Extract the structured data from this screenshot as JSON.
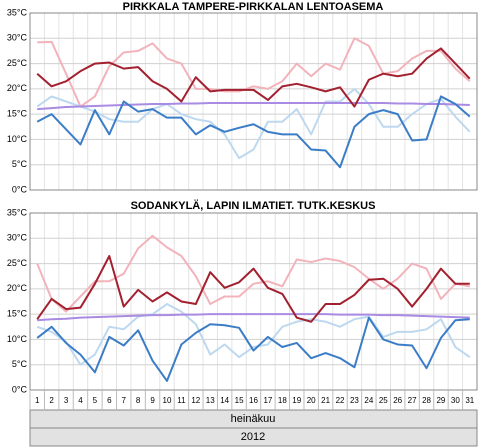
{
  "x_axis": {
    "categories": [
      "1",
      "2",
      "3",
      "4",
      "5",
      "6",
      "7",
      "8",
      "9",
      "10",
      "11",
      "12",
      "13",
      "14",
      "15",
      "16",
      "17",
      "18",
      "19",
      "20",
      "21",
      "22",
      "23",
      "24",
      "25",
      "26",
      "27",
      "28",
      "29",
      "30",
      "31"
    ],
    "month": "heinäkuu",
    "year": "2012"
  },
  "chart_data": [
    {
      "type": "line",
      "title": "PIRKKALA TAMPERE-PIRKKALAN LENTOASEMA",
      "grid": true,
      "ylim": [
        0,
        35
      ],
      "yticks": [
        {
          "value": 0,
          "label": "0°C"
        },
        {
          "value": 5,
          "label": "5°C"
        },
        {
          "value": 10,
          "label": "10°C"
        },
        {
          "value": 15,
          "label": "15°C"
        },
        {
          "value": 20,
          "label": "20°C"
        },
        {
          "value": 25,
          "label": "25°C"
        },
        {
          "value": 30,
          "label": "30°C"
        },
        {
          "value": 35,
          "label": "35°C"
        }
      ],
      "series": [
        {
          "color": "#f2b3bb",
          "values": [
            29.2,
            29.3,
            23,
            16.5,
            18.5,
            24.5,
            27.2,
            27.5,
            29,
            26,
            25,
            20,
            20,
            19.5,
            19.5,
            20.5,
            20,
            21.5,
            25,
            22.5,
            25,
            23.8,
            30,
            28.5,
            23,
            23.5,
            26,
            27.5,
            27.5,
            24,
            21.5
          ]
        },
        {
          "color": "#bdd8ef",
          "values": [
            16.5,
            18.5,
            17.5,
            16.5,
            15.5,
            14,
            13.5,
            13.5,
            16,
            17,
            15,
            14,
            13.5,
            11,
            6.3,
            8,
            13.5,
            13.5,
            16,
            11,
            17.5,
            17.5,
            20,
            17,
            12.5,
            12.5,
            15,
            17,
            18,
            14.5,
            11.5
          ]
        },
        {
          "color": "#a98be3",
          "values": [
            16,
            16.2,
            16.4,
            16.5,
            16.6,
            16.7,
            16.8,
            16.9,
            17,
            17,
            17.1,
            17.1,
            17.2,
            17.2,
            17.2,
            17.2,
            17.2,
            17.2,
            17.2,
            17.2,
            17.2,
            17.2,
            17.2,
            17.2,
            17.2,
            17.1,
            17.1,
            17,
            17,
            16.9,
            16.8
          ]
        },
        {
          "color": "#a3202f",
          "values": [
            23,
            20.5,
            21.5,
            23.5,
            25,
            25.2,
            24,
            24.3,
            21.5,
            20,
            17.5,
            22.3,
            19.5,
            19.8,
            19.8,
            19.8,
            17.8,
            20.5,
            21,
            20.3,
            19.5,
            20.3,
            16.5,
            21.8,
            23,
            22.5,
            23,
            26,
            28,
            25,
            22
          ]
        },
        {
          "color": "#3b7dc6",
          "values": [
            13.5,
            15,
            12,
            9,
            15.8,
            11,
            17.5,
            15.5,
            16,
            14.3,
            14.3,
            11,
            12.8,
            11.5,
            12.3,
            13,
            11.5,
            11,
            11,
            8,
            7.8,
            4.5,
            12.5,
            15,
            15.8,
            15,
            9.8,
            10,
            18.5,
            17,
            14.5
          ]
        }
      ]
    },
    {
      "type": "line",
      "title": "SODANKYLÄ, LAPIN ILMATIET. TUTK.KESKUS",
      "grid": true,
      "ylim": [
        0,
        35
      ],
      "yticks": [
        {
          "value": 0,
          "label": "0°C"
        },
        {
          "value": 5,
          "label": "5°C"
        },
        {
          "value": 10,
          "label": "10°C"
        },
        {
          "value": 15,
          "label": "15°C"
        },
        {
          "value": 20,
          "label": "20°C"
        },
        {
          "value": 25,
          "label": "25°C"
        },
        {
          "value": 30,
          "label": "30°C"
        },
        {
          "value": 35,
          "label": "35°C"
        }
      ],
      "series": [
        {
          "color": "#f2b3bb",
          "values": [
            25,
            18,
            15.5,
            18.5,
            21.5,
            21.5,
            23,
            28,
            30.5,
            28.2,
            26.5,
            22.5,
            17,
            18.5,
            18.5,
            21,
            21.5,
            20.5,
            25.8,
            25.3,
            26,
            25.5,
            24.3,
            22,
            20,
            22,
            25,
            24,
            18,
            21,
            20.5
          ]
        },
        {
          "color": "#bdd8ef",
          "values": [
            12.5,
            11.5,
            9.5,
            5,
            7,
            12.5,
            12,
            14.5,
            15,
            17,
            15.5,
            13,
            7,
            9,
            6.5,
            8.5,
            9,
            12.5,
            13.5,
            14,
            13.5,
            12.5,
            14,
            14.5,
            10.5,
            11.5,
            11.5,
            12,
            14,
            8.5,
            6.5
          ]
        },
        {
          "color": "#a98be3",
          "values": [
            13.8,
            14,
            14.1,
            14.3,
            14.4,
            14.5,
            14.6,
            14.7,
            14.8,
            14.8,
            14.9,
            14.9,
            15,
            15,
            15,
            15,
            15,
            15,
            15,
            15,
            15,
            14.9,
            14.9,
            14.9,
            14.8,
            14.8,
            14.7,
            14.6,
            14.5,
            14.4,
            14.3
          ]
        },
        {
          "color": "#a3202f",
          "values": [
            14,
            18,
            16,
            16.3,
            21,
            26.5,
            16.5,
            19.8,
            17.5,
            19.3,
            17.5,
            17,
            23.3,
            20.2,
            21.3,
            24,
            20.2,
            19,
            14.3,
            13.5,
            17,
            17,
            18.8,
            21.8,
            22,
            20,
            16.5,
            20,
            24,
            21,
            21
          ]
        },
        {
          "color": "#3b7dc6",
          "values": [
            10.3,
            12.5,
            9.3,
            7,
            3.5,
            10.5,
            8.8,
            11.8,
            5.8,
            1.8,
            9,
            11.3,
            13,
            12.8,
            12.3,
            7.8,
            10.5,
            8.5,
            9.3,
            6.3,
            7.3,
            6.3,
            4.5,
            14.3,
            10,
            9,
            8.8,
            4.3,
            10.3,
            13.8,
            14
          ]
        }
      ]
    }
  ]
}
